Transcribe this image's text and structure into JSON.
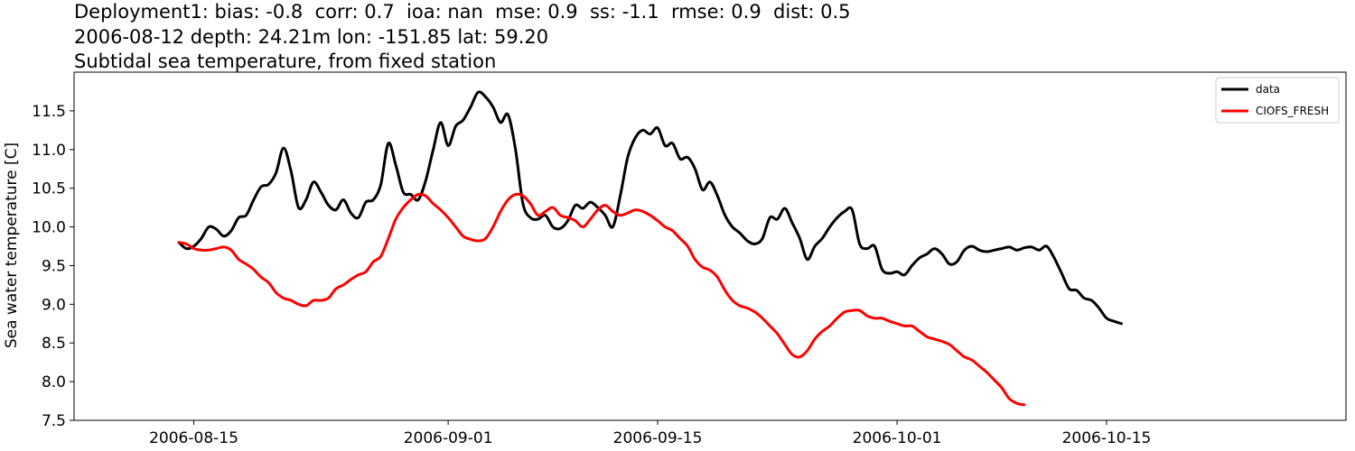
{
  "titles": {
    "line1": "Deployment1: bias: -0.8  corr: 0.7  ioa: nan  mse: 0.9  ss: -1.1  rmse: 0.9  dist: 0.5",
    "line2": "2006-08-12 depth: 24.21m lon: -151.85 lat: 59.20",
    "line3": "Subtidal sea temperature, from fixed station"
  },
  "chart_data": {
    "type": "line",
    "ylabel": "Sea water temperature [C]",
    "xlabel": "",
    "x_range": [
      "2006-08-07",
      "2006-10-31"
    ],
    "ylim": [
      7.5,
      12.0
    ],
    "x_ticks": [
      "2006-08-15",
      "2006-09-01",
      "2006-09-15",
      "2006-10-01",
      "2006-10-15"
    ],
    "y_ticks": [
      7.5,
      8.0,
      8.5,
      9.0,
      9.5,
      10.0,
      10.5,
      11.0,
      11.5
    ],
    "grid": false,
    "legend_position": "top-right",
    "series": [
      {
        "name": "data",
        "color": "#000000",
        "points": [
          [
            "2006-08-14",
            9.8
          ],
          [
            "2006-08-14T12:00",
            9.72
          ],
          [
            "2006-08-15",
            9.75
          ],
          [
            "2006-08-15T12:00",
            9.85
          ],
          [
            "2006-08-16",
            10.0
          ],
          [
            "2006-08-16T12:00",
            9.97
          ],
          [
            "2006-08-17",
            9.88
          ],
          [
            "2006-08-17T12:00",
            9.95
          ],
          [
            "2006-08-18",
            10.12
          ],
          [
            "2006-08-18T12:00",
            10.15
          ],
          [
            "2006-08-19",
            10.35
          ],
          [
            "2006-08-19T12:00",
            10.52
          ],
          [
            "2006-08-20",
            10.55
          ],
          [
            "2006-08-20T12:00",
            10.7
          ],
          [
            "2006-08-21",
            11.02
          ],
          [
            "2006-08-21T12:00",
            10.72
          ],
          [
            "2006-08-22",
            10.25
          ],
          [
            "2006-08-22T12:00",
            10.35
          ],
          [
            "2006-08-23",
            10.58
          ],
          [
            "2006-08-23T12:00",
            10.45
          ],
          [
            "2006-08-24",
            10.28
          ],
          [
            "2006-08-24T12:00",
            10.22
          ],
          [
            "2006-08-25",
            10.35
          ],
          [
            "2006-08-25T12:00",
            10.18
          ],
          [
            "2006-08-26",
            10.12
          ],
          [
            "2006-08-26T12:00",
            10.32
          ],
          [
            "2006-08-27",
            10.35
          ],
          [
            "2006-08-27T12:00",
            10.55
          ],
          [
            "2006-08-28",
            11.08
          ],
          [
            "2006-08-28T12:00",
            10.8
          ],
          [
            "2006-08-29",
            10.45
          ],
          [
            "2006-08-29T12:00",
            10.42
          ],
          [
            "2006-08-30",
            10.35
          ],
          [
            "2006-08-30T12:00",
            10.6
          ],
          [
            "2006-08-31",
            11.0
          ],
          [
            "2006-08-31T12:00",
            11.35
          ],
          [
            "2006-09-01",
            11.05
          ],
          [
            "2006-09-01T12:00",
            11.3
          ],
          [
            "2006-09-02",
            11.38
          ],
          [
            "2006-09-02T12:00",
            11.55
          ],
          [
            "2006-09-03",
            11.74
          ],
          [
            "2006-09-03T12:00",
            11.68
          ],
          [
            "2006-09-04",
            11.55
          ],
          [
            "2006-09-04T12:00",
            11.35
          ],
          [
            "2006-09-05",
            11.45
          ],
          [
            "2006-09-05T12:00",
            11.0
          ],
          [
            "2006-09-06",
            10.3
          ],
          [
            "2006-09-06T12:00",
            10.12
          ],
          [
            "2006-09-07",
            10.1
          ],
          [
            "2006-09-07T12:00",
            10.15
          ],
          [
            "2006-09-08",
            10.0
          ],
          [
            "2006-09-08T12:00",
            9.98
          ],
          [
            "2006-09-09",
            10.08
          ],
          [
            "2006-09-09T12:00",
            10.28
          ],
          [
            "2006-09-10",
            10.24
          ],
          [
            "2006-09-10T12:00",
            10.32
          ],
          [
            "2006-09-11",
            10.25
          ],
          [
            "2006-09-11T12:00",
            10.15
          ],
          [
            "2006-09-12",
            10.0
          ],
          [
            "2006-09-12T12:00",
            10.4
          ],
          [
            "2006-09-13",
            10.9
          ],
          [
            "2006-09-13T12:00",
            11.15
          ],
          [
            "2006-09-14",
            11.25
          ],
          [
            "2006-09-14T12:00",
            11.2
          ],
          [
            "2006-09-15",
            11.28
          ],
          [
            "2006-09-15T12:00",
            11.05
          ],
          [
            "2006-09-16",
            11.08
          ],
          [
            "2006-09-16T12:00",
            10.88
          ],
          [
            "2006-09-17",
            10.9
          ],
          [
            "2006-09-17T12:00",
            10.75
          ],
          [
            "2006-09-18",
            10.48
          ],
          [
            "2006-09-18T12:00",
            10.58
          ],
          [
            "2006-09-19",
            10.4
          ],
          [
            "2006-09-19T12:00",
            10.15
          ],
          [
            "2006-09-20",
            10.0
          ],
          [
            "2006-09-20T12:00",
            9.92
          ],
          [
            "2006-09-21",
            9.82
          ],
          [
            "2006-09-21T12:00",
            9.78
          ],
          [
            "2006-09-22",
            9.85
          ],
          [
            "2006-09-22T12:00",
            10.12
          ],
          [
            "2006-09-23",
            10.1
          ],
          [
            "2006-09-23T12:00",
            10.24
          ],
          [
            "2006-09-24",
            10.05
          ],
          [
            "2006-09-24T12:00",
            9.85
          ],
          [
            "2006-09-25",
            9.58
          ],
          [
            "2006-09-25T12:00",
            9.75
          ],
          [
            "2006-09-26",
            9.85
          ],
          [
            "2006-09-26T12:00",
            10.0
          ],
          [
            "2006-09-27",
            10.12
          ],
          [
            "2006-09-27T12:00",
            10.2
          ],
          [
            "2006-09-28",
            10.22
          ],
          [
            "2006-09-28T12:00",
            9.78
          ],
          [
            "2006-09-29",
            9.72
          ],
          [
            "2006-09-29T12:00",
            9.75
          ],
          [
            "2006-09-30",
            9.45
          ],
          [
            "2006-09-30T12:00",
            9.4
          ],
          [
            "2006-10-01",
            9.42
          ],
          [
            "2006-10-01T12:00",
            9.38
          ],
          [
            "2006-10-02",
            9.5
          ],
          [
            "2006-10-02T12:00",
            9.6
          ],
          [
            "2006-10-03",
            9.65
          ],
          [
            "2006-10-03T12:00",
            9.72
          ],
          [
            "2006-10-04",
            9.65
          ],
          [
            "2006-10-04T12:00",
            9.52
          ],
          [
            "2006-10-05",
            9.55
          ],
          [
            "2006-10-05T12:00",
            9.7
          ],
          [
            "2006-10-06",
            9.75
          ],
          [
            "2006-10-06T12:00",
            9.7
          ],
          [
            "2006-10-07",
            9.68
          ],
          [
            "2006-10-07T12:00",
            9.7
          ],
          [
            "2006-10-08",
            9.72
          ],
          [
            "2006-10-08T12:00",
            9.74
          ],
          [
            "2006-10-09",
            9.7
          ],
          [
            "2006-10-09T12:00",
            9.73
          ],
          [
            "2006-10-10",
            9.74
          ],
          [
            "2006-10-10T12:00",
            9.7
          ],
          [
            "2006-10-11",
            9.75
          ],
          [
            "2006-10-11T12:00",
            9.6
          ],
          [
            "2006-10-12",
            9.4
          ],
          [
            "2006-10-12T12:00",
            9.2
          ],
          [
            "2006-10-13",
            9.18
          ],
          [
            "2006-10-13T12:00",
            9.08
          ],
          [
            "2006-10-14",
            9.05
          ],
          [
            "2006-10-14T12:00",
            8.95
          ],
          [
            "2006-10-15",
            8.82
          ],
          [
            "2006-10-15T12:00",
            8.78
          ],
          [
            "2006-10-16",
            8.75
          ]
        ]
      },
      {
        "name": "CIOFS_FRESH",
        "color": "#ff0000",
        "points": [
          [
            "2006-08-14",
            9.8
          ],
          [
            "2006-08-14T12:00",
            9.78
          ],
          [
            "2006-08-15",
            9.72
          ],
          [
            "2006-08-15T12:00",
            9.7
          ],
          [
            "2006-08-16",
            9.7
          ],
          [
            "2006-08-16T12:00",
            9.72
          ],
          [
            "2006-08-17",
            9.74
          ],
          [
            "2006-08-17T12:00",
            9.7
          ],
          [
            "2006-08-18",
            9.58
          ],
          [
            "2006-08-18T12:00",
            9.52
          ],
          [
            "2006-08-19",
            9.45
          ],
          [
            "2006-08-19T12:00",
            9.35
          ],
          [
            "2006-08-20",
            9.28
          ],
          [
            "2006-08-20T12:00",
            9.15
          ],
          [
            "2006-08-21",
            9.08
          ],
          [
            "2006-08-21T12:00",
            9.05
          ],
          [
            "2006-08-22",
            9.0
          ],
          [
            "2006-08-22T12:00",
            8.98
          ],
          [
            "2006-08-23",
            9.05
          ],
          [
            "2006-08-23T12:00",
            9.05
          ],
          [
            "2006-08-24",
            9.08
          ],
          [
            "2006-08-24T12:00",
            9.2
          ],
          [
            "2006-08-25",
            9.25
          ],
          [
            "2006-08-25T12:00",
            9.32
          ],
          [
            "2006-08-26",
            9.38
          ],
          [
            "2006-08-26T12:00",
            9.42
          ],
          [
            "2006-08-27",
            9.55
          ],
          [
            "2006-08-27T12:00",
            9.62
          ],
          [
            "2006-08-28",
            9.85
          ],
          [
            "2006-08-28T12:00",
            10.1
          ],
          [
            "2006-08-29",
            10.25
          ],
          [
            "2006-08-29T12:00",
            10.35
          ],
          [
            "2006-08-30",
            10.42
          ],
          [
            "2006-08-30T12:00",
            10.4
          ],
          [
            "2006-08-31",
            10.3
          ],
          [
            "2006-08-31T12:00",
            10.22
          ],
          [
            "2006-09-01",
            10.12
          ],
          [
            "2006-09-01T12:00",
            10.0
          ],
          [
            "2006-09-02",
            9.88
          ],
          [
            "2006-09-02T12:00",
            9.84
          ],
          [
            "2006-09-03",
            9.82
          ],
          [
            "2006-09-03T12:00",
            9.85
          ],
          [
            "2006-09-04",
            10.0
          ],
          [
            "2006-09-04T12:00",
            10.2
          ],
          [
            "2006-09-05",
            10.35
          ],
          [
            "2006-09-05T12:00",
            10.42
          ],
          [
            "2006-09-06",
            10.4
          ],
          [
            "2006-09-06T12:00",
            10.3
          ],
          [
            "2006-09-07",
            10.15
          ],
          [
            "2006-09-07T12:00",
            10.2
          ],
          [
            "2006-09-08",
            10.25
          ],
          [
            "2006-09-08T12:00",
            10.15
          ],
          [
            "2006-09-09",
            10.12
          ],
          [
            "2006-09-09T12:00",
            10.08
          ],
          [
            "2006-09-10",
            10.0
          ],
          [
            "2006-09-10T12:00",
            10.1
          ],
          [
            "2006-09-11",
            10.22
          ],
          [
            "2006-09-11T12:00",
            10.28
          ],
          [
            "2006-09-12",
            10.2
          ],
          [
            "2006-09-12T12:00",
            10.15
          ],
          [
            "2006-09-13",
            10.18
          ],
          [
            "2006-09-13T12:00",
            10.22
          ],
          [
            "2006-09-14",
            10.2
          ],
          [
            "2006-09-14T12:00",
            10.15
          ],
          [
            "2006-09-15",
            10.08
          ],
          [
            "2006-09-15T12:00",
            10.0
          ],
          [
            "2006-09-16",
            9.95
          ],
          [
            "2006-09-16T12:00",
            9.85
          ],
          [
            "2006-09-17",
            9.75
          ],
          [
            "2006-09-17T12:00",
            9.58
          ],
          [
            "2006-09-18",
            9.48
          ],
          [
            "2006-09-18T12:00",
            9.44
          ],
          [
            "2006-09-19",
            9.35
          ],
          [
            "2006-09-19T12:00",
            9.18
          ],
          [
            "2006-09-20",
            9.05
          ],
          [
            "2006-09-20T12:00",
            8.98
          ],
          [
            "2006-09-21",
            8.95
          ],
          [
            "2006-09-21T12:00",
            8.9
          ],
          [
            "2006-09-22",
            8.82
          ],
          [
            "2006-09-22T12:00",
            8.72
          ],
          [
            "2006-09-23",
            8.62
          ],
          [
            "2006-09-23T12:00",
            8.48
          ],
          [
            "2006-09-24",
            8.35
          ],
          [
            "2006-09-24T12:00",
            8.32
          ],
          [
            "2006-09-25",
            8.4
          ],
          [
            "2006-09-25T12:00",
            8.55
          ],
          [
            "2006-09-26",
            8.65
          ],
          [
            "2006-09-26T12:00",
            8.72
          ],
          [
            "2006-09-27",
            8.82
          ],
          [
            "2006-09-27T12:00",
            8.9
          ],
          [
            "2006-09-28",
            8.92
          ],
          [
            "2006-09-28T12:00",
            8.92
          ],
          [
            "2006-09-29",
            8.85
          ],
          [
            "2006-09-29T12:00",
            8.82
          ],
          [
            "2006-09-30",
            8.82
          ],
          [
            "2006-09-30T12:00",
            8.78
          ],
          [
            "2006-10-01",
            8.75
          ],
          [
            "2006-10-01T12:00",
            8.72
          ],
          [
            "2006-10-02",
            8.72
          ],
          [
            "2006-10-02T12:00",
            8.65
          ],
          [
            "2006-10-03",
            8.58
          ],
          [
            "2006-10-03T12:00",
            8.55
          ],
          [
            "2006-10-04",
            8.52
          ],
          [
            "2006-10-04T12:00",
            8.48
          ],
          [
            "2006-10-05",
            8.4
          ],
          [
            "2006-10-05T12:00",
            8.32
          ],
          [
            "2006-10-06",
            8.28
          ],
          [
            "2006-10-06T12:00",
            8.2
          ],
          [
            "2006-10-07",
            8.12
          ],
          [
            "2006-10-07T12:00",
            8.02
          ],
          [
            "2006-10-08",
            7.92
          ],
          [
            "2006-10-08T12:00",
            7.78
          ],
          [
            "2006-10-09",
            7.72
          ],
          [
            "2006-10-09T12:00",
            7.7
          ]
        ]
      }
    ]
  }
}
